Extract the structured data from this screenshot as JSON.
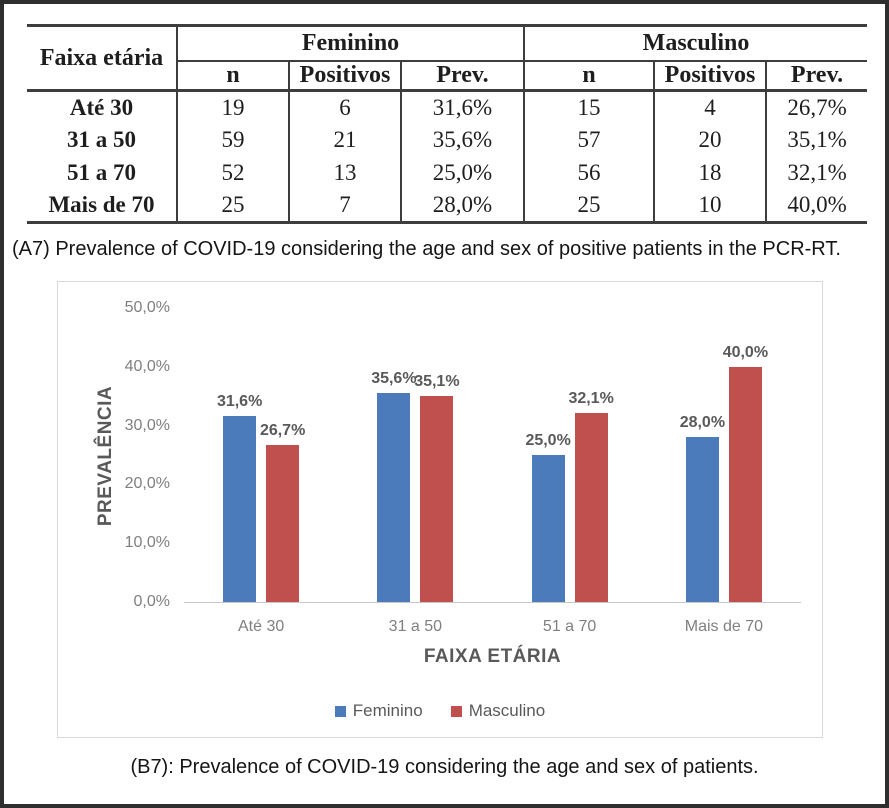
{
  "table": {
    "col_label": "Faixa etária",
    "group_headers": [
      "Feminino",
      "Masculino"
    ],
    "sub_headers": [
      "n",
      "Positivos",
      "Prev."
    ],
    "rows": [
      {
        "label": "Até 30",
        "f_n": "19",
        "f_pos": "6",
        "f_prev": "31,6%",
        "m_n": "15",
        "m_pos": "4",
        "m_prev": "26,7%"
      },
      {
        "label": "31 a 50",
        "f_n": "59",
        "f_pos": "21",
        "f_prev": "35,6%",
        "m_n": "57",
        "m_pos": "20",
        "m_prev": "35,1%"
      },
      {
        "label": "51 a 70",
        "f_n": "52",
        "f_pos": "13",
        "f_prev": "25,0%",
        "m_n": "56",
        "m_pos": "18",
        "m_prev": "32,1%"
      },
      {
        "label": "Mais de 70",
        "f_n": "25",
        "f_pos": "7",
        "f_prev": "28,0%",
        "m_n": "25",
        "m_pos": "10",
        "m_prev": "40,0%"
      }
    ]
  },
  "caption_a": "(A7) Prevalence of COVID-19 considering the age and sex of positive patients in the PCR-RT.",
  "caption_b": "(B7): Prevalence of COVID-19 considering the age and sex of patients.",
  "chart_data": {
    "type": "bar",
    "title": "",
    "categories": [
      "Até 30",
      "31 a 50",
      "51 a 70",
      "Mais de 70"
    ],
    "series": [
      {
        "name": "Feminino",
        "color": "#4B7BBA",
        "values": [
          31.6,
          35.6,
          25.0,
          28.0
        ],
        "labels": [
          "31,6%",
          "35,6%",
          "25,0%",
          "28,0%"
        ]
      },
      {
        "name": "Masculino",
        "color": "#C0504D",
        "values": [
          26.7,
          35.1,
          32.1,
          40.0
        ],
        "labels": [
          "26,7%",
          "35,1%",
          "32,1%",
          "40,0%"
        ]
      }
    ],
    "xlabel": "FAIXA ETÁRIA",
    "ylabel": "PREVALÊNCIA",
    "ylim": [
      0,
      50
    ],
    "ytick_step": 10,
    "yticks": [
      "0,0%",
      "10,0%",
      "20,0%",
      "30,0%",
      "40,0%",
      "50,0%"
    ],
    "grid": false,
    "legend_position": "bottom"
  }
}
